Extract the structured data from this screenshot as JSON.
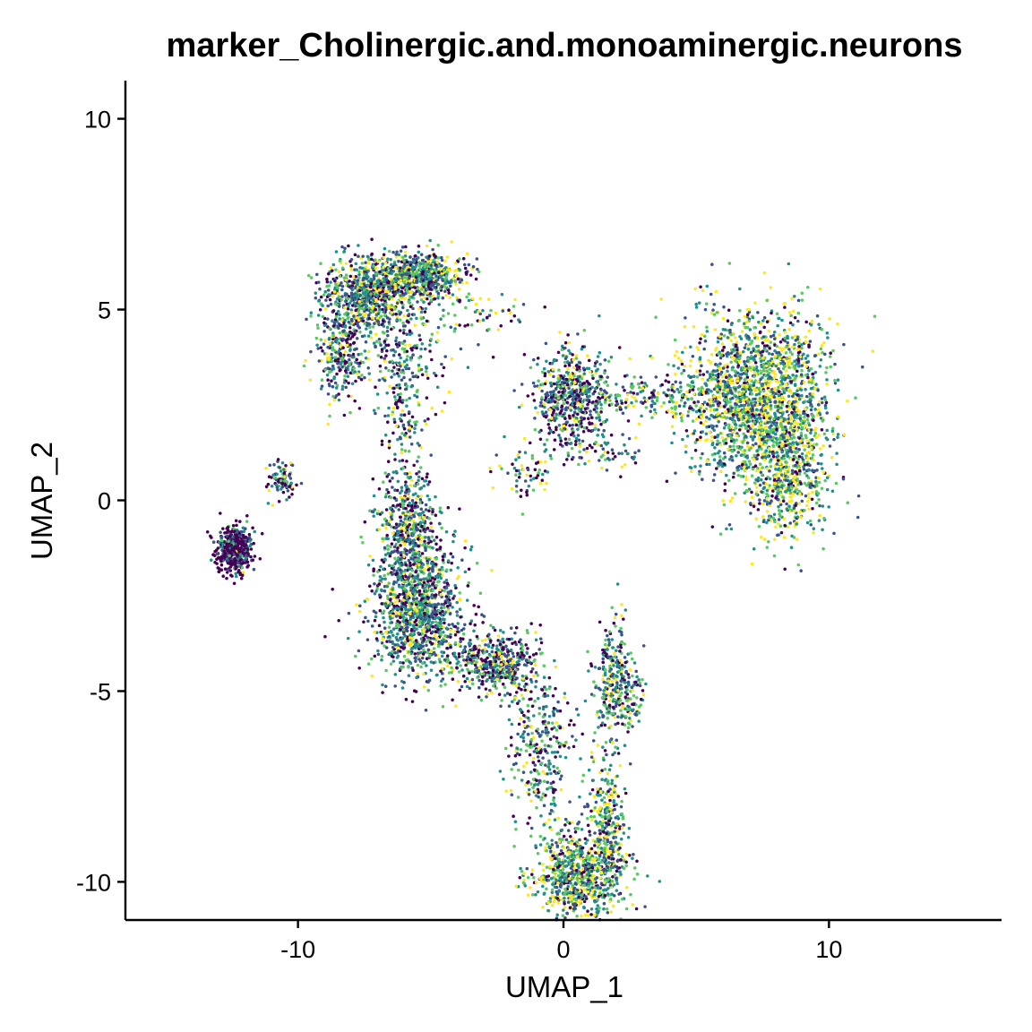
{
  "chart_data": {
    "type": "scatter",
    "title": "marker_Cholinergic.and.monoaminergic.neurons",
    "xlabel": "UMAP_1",
    "ylabel": "UMAP_2",
    "xlim": [
      -16.5,
      16.5
    ],
    "ylim": [
      -11,
      11
    ],
    "x_ticks": [
      -10,
      0,
      10
    ],
    "y_ticks": [
      -10,
      -5,
      0,
      5,
      10
    ],
    "x_tick_labels": [
      "-10",
      "0",
      "10"
    ],
    "y_tick_labels": [
      "-10",
      "-5",
      "0",
      "5",
      "10"
    ],
    "grid": false,
    "legend": "none",
    "colormap": "viridis",
    "color_stops": [
      "#440154",
      "#3b528b",
      "#21908c",
      "#5dc863",
      "#fde725"
    ],
    "point_size_units": 0.06,
    "clusters": [
      {
        "cx": -12.4,
        "cy": -1.3,
        "sx": 0.35,
        "sy": 0.32,
        "n": 420,
        "level": 0.05
      },
      {
        "cx": -10.6,
        "cy": 0.5,
        "sx": 0.25,
        "sy": 0.3,
        "n": 90,
        "level": 0.3
      },
      {
        "cx": -7.3,
        "cy": 5.4,
        "sx": 0.9,
        "sy": 0.5,
        "n": 700,
        "level": 0.45
      },
      {
        "cx": -5.4,
        "cy": 5.9,
        "sx": 0.9,
        "sy": 0.3,
        "n": 600,
        "level": 0.5
      },
      {
        "cx": -8.4,
        "cy": 3.8,
        "sx": 0.4,
        "sy": 0.6,
        "n": 250,
        "level": 0.4
      },
      {
        "cx": -6.2,
        "cy": 3.9,
        "sx": 1.0,
        "sy": 0.8,
        "n": 250,
        "level": 0.4
      },
      {
        "cx": -6.0,
        "cy": 2.2,
        "sx": 0.4,
        "sy": 0.9,
        "n": 100,
        "level": 0.4
      },
      {
        "cx": 0.3,
        "cy": 2.7,
        "sx": 0.7,
        "sy": 0.7,
        "n": 550,
        "level": 0.35
      },
      {
        "cx": 3.0,
        "cy": 2.7,
        "sx": 1.6,
        "sy": 0.25,
        "n": 200,
        "level": 0.5
      },
      {
        "cx": 7.3,
        "cy": 2.7,
        "sx": 1.4,
        "sy": 1.1,
        "n": 1900,
        "level": 0.6
      },
      {
        "cx": 8.4,
        "cy": 0.5,
        "sx": 0.7,
        "sy": 0.8,
        "n": 450,
        "level": 0.6
      },
      {
        "cx": -5.8,
        "cy": -1.0,
        "sx": 0.6,
        "sy": 0.9,
        "n": 600,
        "level": 0.4
      },
      {
        "cx": -5.4,
        "cy": -3.0,
        "sx": 0.9,
        "sy": 0.8,
        "n": 1000,
        "level": 0.45
      },
      {
        "cx": -2.5,
        "cy": -4.3,
        "sx": 0.8,
        "sy": 0.4,
        "n": 450,
        "level": 0.4
      },
      {
        "cx": -0.8,
        "cy": -6.5,
        "sx": 0.6,
        "sy": 0.9,
        "n": 300,
        "level": 0.45
      },
      {
        "cx": 1.8,
        "cy": -4.8,
        "sx": 0.35,
        "sy": 0.8,
        "n": 250,
        "level": 0.45
      },
      {
        "cx": 2.5,
        "cy": -5.2,
        "sx": 0.25,
        "sy": 0.45,
        "n": 90,
        "level": 0.45
      },
      {
        "cx": 1.6,
        "cy": -8.3,
        "sx": 0.35,
        "sy": 0.9,
        "n": 250,
        "level": 0.55
      },
      {
        "cx": 0.6,
        "cy": -9.8,
        "sx": 0.9,
        "sy": 0.6,
        "n": 800,
        "level": 0.55
      },
      {
        "cx": -1.3,
        "cy": 0.7,
        "sx": 0.5,
        "sy": 0.3,
        "n": 60,
        "level": 0.5
      },
      {
        "cx": 1.8,
        "cy": 1.2,
        "sx": 0.5,
        "sy": 0.2,
        "n": 40,
        "level": 0.5
      },
      {
        "cx": -3.2,
        "cy": 4.8,
        "sx": 0.9,
        "sy": 0.4,
        "n": 60,
        "level": 0.5
      }
    ]
  }
}
